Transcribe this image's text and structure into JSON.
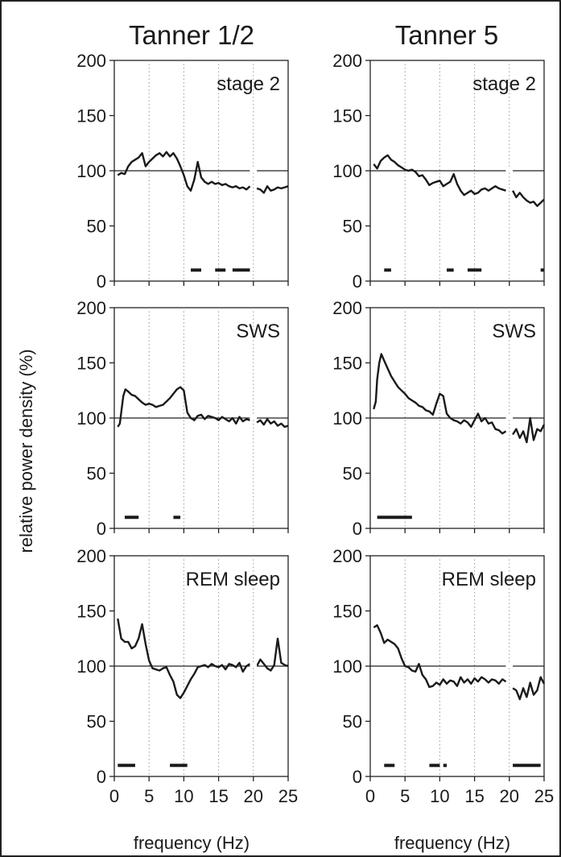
{
  "column_titles": [
    "Tanner 1/2",
    "Tanner 5"
  ],
  "ylabel": "relative power density (%)",
  "xlabel": "frequency (Hz)",
  "chart_data": [
    {
      "type": "line",
      "id": "t12-stage2",
      "label": "stage 2",
      "column_title": "Tanner 1/2",
      "xlim": [
        0,
        25
      ],
      "ylim": [
        0,
        200
      ],
      "xticks": [
        0,
        5,
        10,
        15,
        20,
        25
      ],
      "yticks": [
        0,
        50,
        100,
        150,
        200
      ],
      "reference_line": 100,
      "gap": [
        19.5,
        20.5
      ],
      "x": [
        0.5,
        1,
        1.5,
        2,
        2.5,
        3,
        3.5,
        4,
        4.5,
        5,
        5.5,
        6,
        6.5,
        7,
        7.5,
        8,
        8.5,
        9,
        9.5,
        10,
        10.5,
        11,
        11.5,
        12,
        12.5,
        13,
        13.5,
        14,
        14.5,
        15,
        15.5,
        16,
        16.5,
        17,
        17.5,
        18,
        18.5,
        19,
        19.5,
        20.5,
        21,
        21.5,
        22,
        22.5,
        23,
        23.5,
        24,
        24.5,
        25
      ],
      "y": [
        96,
        98,
        97,
        104,
        108,
        110,
        112,
        116,
        104,
        108,
        111,
        114,
        116,
        113,
        117,
        113,
        116,
        111,
        104,
        96,
        86,
        82,
        92,
        108,
        94,
        90,
        88,
        90,
        88,
        89,
        87,
        88,
        86,
        85,
        86,
        84,
        85,
        83,
        86,
        84,
        83,
        80,
        86,
        82,
        83,
        85,
        84,
        85,
        86
      ],
      "sig_bars": [
        [
          11,
          12.5
        ],
        [
          14.5,
          16
        ],
        [
          17,
          19.5
        ]
      ]
    },
    {
      "type": "line",
      "id": "t5-stage2",
      "label": "stage 2",
      "column_title": "Tanner 5",
      "xlim": [
        0,
        25
      ],
      "ylim": [
        0,
        200
      ],
      "xticks": [
        0,
        5,
        10,
        15,
        20,
        25
      ],
      "yticks": [
        0,
        50,
        100,
        150,
        200
      ],
      "reference_line": 100,
      "gap": [
        19.5,
        20.5
      ],
      "x": [
        0.5,
        1,
        1.5,
        2,
        2.5,
        3,
        3.5,
        4,
        4.5,
        5,
        5.5,
        6,
        6.5,
        7,
        7.5,
        8,
        8.5,
        9,
        9.5,
        10,
        10.5,
        11,
        11.5,
        12,
        12.5,
        13,
        13.5,
        14,
        14.5,
        15,
        15.5,
        16,
        16.5,
        17,
        17.5,
        18,
        18.5,
        19,
        19.5,
        20.5,
        21,
        21.5,
        22,
        22.5,
        23,
        23.5,
        24,
        24.5,
        25
      ],
      "y": [
        106,
        102,
        109,
        112,
        114,
        110,
        108,
        105,
        103,
        101,
        100,
        101,
        99,
        95,
        96,
        92,
        87,
        89,
        90,
        91,
        86,
        88,
        90,
        97,
        88,
        82,
        78,
        80,
        82,
        79,
        80,
        83,
        84,
        82,
        84,
        86,
        84,
        83,
        82,
        82,
        76,
        80,
        76,
        73,
        71,
        72,
        68,
        71,
        74
      ],
      "sig_bars": [
        [
          2,
          3
        ],
        [
          11,
          12
        ],
        [
          14,
          16
        ],
        [
          24.5,
          25
        ]
      ]
    },
    {
      "type": "line",
      "id": "t12-sws",
      "label": "SWS",
      "column_title": "Tanner 1/2",
      "xlim": [
        0,
        25
      ],
      "ylim": [
        0,
        200
      ],
      "xticks": [
        0,
        5,
        10,
        15,
        20,
        25
      ],
      "yticks": [
        0,
        50,
        100,
        150,
        200
      ],
      "reference_line": 100,
      "gap": [
        19.5,
        20.5
      ],
      "x": [
        0.5,
        0.8,
        1,
        1.3,
        1.6,
        2,
        2.5,
        3,
        3.5,
        4,
        4.5,
        5,
        5.5,
        6,
        6.5,
        7,
        7.5,
        8,
        8.5,
        9,
        9.5,
        10,
        10.5,
        11,
        11.5,
        12,
        12.5,
        13,
        13.5,
        14,
        14.5,
        15,
        15.5,
        16,
        16.5,
        17,
        17.5,
        18,
        18.5,
        19,
        19.5,
        20.5,
        21,
        21.5,
        22,
        22.5,
        23,
        23.5,
        24,
        24.5,
        25
      ],
      "y": [
        92,
        95,
        105,
        120,
        126,
        124,
        121,
        120,
        117,
        114,
        112,
        113,
        112,
        110,
        111,
        112,
        115,
        118,
        122,
        126,
        128,
        125,
        105,
        100,
        98,
        102,
        103,
        99,
        102,
        101,
        100,
        98,
        101,
        99,
        97,
        100,
        95,
        101,
        97,
        99,
        98,
        96,
        98,
        94,
        99,
        95,
        97,
        93,
        95,
        92,
        93
      ],
      "sig_bars": [
        [
          1.5,
          3.5
        ],
        [
          8.5,
          9.5
        ]
      ]
    },
    {
      "type": "line",
      "id": "t5-sws",
      "label": "SWS",
      "column_title": "Tanner 5",
      "xlim": [
        0,
        25
      ],
      "ylim": [
        0,
        200
      ],
      "xticks": [
        0,
        5,
        10,
        15,
        20,
        25
      ],
      "yticks": [
        0,
        50,
        100,
        150,
        200
      ],
      "reference_line": 100,
      "gap": [
        19.5,
        20.5
      ],
      "x": [
        0.5,
        0.8,
        1,
        1.3,
        1.6,
        2,
        2.5,
        3,
        3.5,
        4,
        4.5,
        5,
        5.5,
        6,
        6.5,
        7,
        7.5,
        8,
        8.5,
        9,
        9.5,
        10,
        10.5,
        11,
        11.5,
        12,
        12.5,
        13,
        13.5,
        14,
        14.5,
        15,
        15.5,
        16,
        16.5,
        17,
        17.5,
        18,
        18.5,
        19,
        19.5,
        20.5,
        21,
        21.5,
        22,
        22.5,
        23,
        23.5,
        24,
        24.5,
        25
      ],
      "y": [
        108,
        115,
        135,
        150,
        158,
        152,
        145,
        138,
        133,
        128,
        125,
        122,
        118,
        116,
        114,
        111,
        110,
        107,
        106,
        103,
        113,
        122,
        120,
        104,
        100,
        98,
        97,
        95,
        98,
        96,
        92,
        98,
        104,
        97,
        100,
        95,
        96,
        90,
        89,
        86,
        88,
        85,
        90,
        82,
        88,
        78,
        100,
        80,
        90,
        88,
        94
      ],
      "sig_bars": [
        [
          1,
          6
        ]
      ]
    },
    {
      "type": "line",
      "id": "t12-rem",
      "label": "REM sleep",
      "column_title": "Tanner 1/2",
      "xlim": [
        0,
        25
      ],
      "ylim": [
        0,
        200
      ],
      "xticks": [
        0,
        5,
        10,
        15,
        20,
        25
      ],
      "yticks": [
        0,
        50,
        100,
        150,
        200
      ],
      "reference_line": 100,
      "gap": [
        19.5,
        20.5
      ],
      "x": [
        0.5,
        1,
        1.5,
        2,
        2.5,
        3,
        3.5,
        4,
        4.5,
        5,
        5.5,
        6,
        6.5,
        7,
        7.5,
        8,
        8.5,
        9,
        9.5,
        10,
        10.5,
        11,
        11.5,
        12,
        12.5,
        13,
        13.5,
        14,
        14.5,
        15,
        15.5,
        16,
        16.5,
        17,
        17.5,
        18,
        18.5,
        19,
        19.5,
        20.5,
        21,
        21.5,
        22,
        22.5,
        23,
        23.5,
        24,
        24.5,
        25
      ],
      "y": [
        143,
        125,
        122,
        122,
        116,
        118,
        125,
        138,
        120,
        105,
        98,
        97,
        96,
        98,
        99,
        92,
        86,
        74,
        71,
        76,
        82,
        88,
        93,
        99,
        100,
        101,
        99,
        102,
        100,
        99,
        101,
        97,
        102,
        101,
        99,
        103,
        95,
        100,
        102,
        100,
        106,
        102,
        98,
        96,
        101,
        125,
        103,
        101,
        100
      ],
      "sig_bars": [
        [
          0.5,
          3
        ],
        [
          8,
          10.5
        ]
      ]
    },
    {
      "type": "line",
      "id": "t5-rem",
      "label": "REM sleep",
      "column_title": "Tanner 5",
      "xlim": [
        0,
        25
      ],
      "ylim": [
        0,
        200
      ],
      "xticks": [
        0,
        5,
        10,
        15,
        20,
        25
      ],
      "yticks": [
        0,
        50,
        100,
        150,
        200
      ],
      "reference_line": 100,
      "gap": [
        19.5,
        20.5
      ],
      "x": [
        0.5,
        1,
        1.5,
        2,
        2.5,
        3,
        3.5,
        4,
        4.5,
        5,
        5.5,
        6,
        6.5,
        7,
        7.5,
        8,
        8.5,
        9,
        9.5,
        10,
        10.5,
        11,
        11.5,
        12,
        12.5,
        13,
        13.5,
        14,
        14.5,
        15,
        15.5,
        16,
        16.5,
        17,
        17.5,
        18,
        18.5,
        19,
        19.5,
        20.5,
        21,
        21.5,
        22,
        22.5,
        23,
        23.5,
        24,
        24.5,
        25
      ],
      "y": [
        135,
        137,
        130,
        121,
        124,
        122,
        120,
        116,
        107,
        100,
        99,
        96,
        95,
        102,
        92,
        88,
        81,
        82,
        85,
        83,
        88,
        84,
        87,
        86,
        82,
        90,
        85,
        88,
        84,
        89,
        86,
        90,
        88,
        85,
        88,
        87,
        84,
        88,
        86,
        80,
        78,
        70,
        80,
        72,
        85,
        74,
        78,
        90,
        84
      ],
      "sig_bars": [
        [
          2,
          3.5
        ],
        [
          8.5,
          10
        ],
        [
          10.5,
          11
        ],
        [
          20.5,
          24.5
        ]
      ]
    }
  ]
}
